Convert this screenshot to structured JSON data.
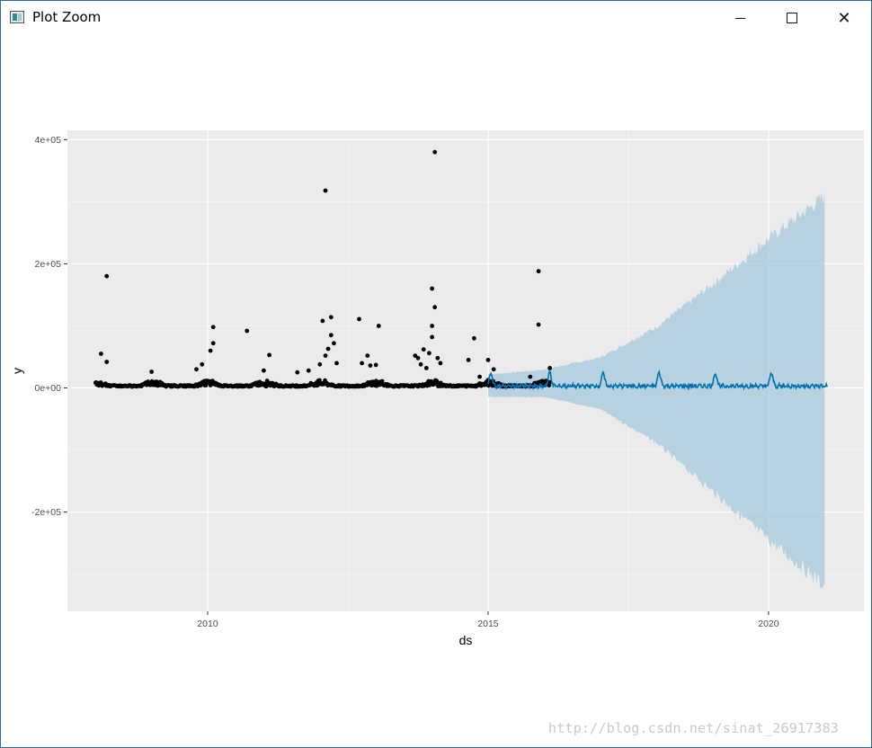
{
  "window": {
    "title": "Plot Zoom",
    "controls": {
      "minimize": "minimize-icon",
      "maximize": "maximize-icon",
      "close": "close-icon"
    }
  },
  "watermark": "http://blog.csdn.net/sinat_26917383",
  "chart_data": {
    "type": "line",
    "xlabel": "ds",
    "ylabel": "y",
    "x_ticks": [
      {
        "value": 2010,
        "label": "2010"
      },
      {
        "value": 2015,
        "label": "2015"
      },
      {
        "value": 2020,
        "label": "2020"
      }
    ],
    "y_ticks": [
      {
        "value": 400000,
        "label": "4e+05"
      },
      {
        "value": 200000,
        "label": "2e+05"
      },
      {
        "value": 0,
        "label": "0e+00"
      },
      {
        "value": -200000,
        "label": "-2e+05"
      }
    ],
    "xlim": [
      2007.5,
      2021.7
    ],
    "ylim": [
      -360000,
      415000
    ],
    "grid": true,
    "colors": {
      "panel": "#ebebeb",
      "grid": "#ffffff",
      "points": "#000000",
      "forecast": "#0072b2",
      "interval": "#a6c8dd"
    },
    "observed_outliers": [
      {
        "x": 2008.2,
        "y": 180000
      },
      {
        "x": 2008.1,
        "y": 55000
      },
      {
        "x": 2008.2,
        "y": 42000
      },
      {
        "x": 2009.0,
        "y": 26000
      },
      {
        "x": 2009.8,
        "y": 30000
      },
      {
        "x": 2009.9,
        "y": 38000
      },
      {
        "x": 2010.1,
        "y": 98000
      },
      {
        "x": 2010.1,
        "y": 72000
      },
      {
        "x": 2010.05,
        "y": 60000
      },
      {
        "x": 2010.7,
        "y": 92000
      },
      {
        "x": 2011.0,
        "y": 28000
      },
      {
        "x": 2011.1,
        "y": 53000
      },
      {
        "x": 2011.6,
        "y": 25000
      },
      {
        "x": 2011.8,
        "y": 28000
      },
      {
        "x": 2012.1,
        "y": 318000
      },
      {
        "x": 2012.05,
        "y": 108000
      },
      {
        "x": 2012.2,
        "y": 114000
      },
      {
        "x": 2012.2,
        "y": 85000
      },
      {
        "x": 2012.25,
        "y": 72000
      },
      {
        "x": 2012.15,
        "y": 63000
      },
      {
        "x": 2012.1,
        "y": 52000
      },
      {
        "x": 2012.0,
        "y": 38000
      },
      {
        "x": 2012.3,
        "y": 40000
      },
      {
        "x": 2012.7,
        "y": 111000
      },
      {
        "x": 2012.85,
        "y": 52000
      },
      {
        "x": 2012.75,
        "y": 40000
      },
      {
        "x": 2012.9,
        "y": 36000
      },
      {
        "x": 2013.05,
        "y": 100000
      },
      {
        "x": 2013.0,
        "y": 37000
      },
      {
        "x": 2013.7,
        "y": 52000
      },
      {
        "x": 2013.75,
        "y": 48000
      },
      {
        "x": 2013.85,
        "y": 62000
      },
      {
        "x": 2013.95,
        "y": 56000
      },
      {
        "x": 2013.8,
        "y": 38000
      },
      {
        "x": 2013.9,
        "y": 32000
      },
      {
        "x": 2014.05,
        "y": 380000
      },
      {
        "x": 2014.0,
        "y": 160000
      },
      {
        "x": 2014.05,
        "y": 130000
      },
      {
        "x": 2014.0,
        "y": 100000
      },
      {
        "x": 2014.0,
        "y": 82000
      },
      {
        "x": 2014.1,
        "y": 48000
      },
      {
        "x": 2014.15,
        "y": 40000
      },
      {
        "x": 2014.65,
        "y": 45000
      },
      {
        "x": 2014.75,
        "y": 80000
      },
      {
        "x": 2014.85,
        "y": 18000
      },
      {
        "x": 2015.0,
        "y": 45000
      },
      {
        "x": 2015.1,
        "y": 30000
      },
      {
        "x": 2015.9,
        "y": 188000
      },
      {
        "x": 2015.9,
        "y": 102000
      },
      {
        "x": 2016.1,
        "y": 32000
      },
      {
        "x": 2015.75,
        "y": 18000
      }
    ],
    "forecast_peaks": [
      {
        "x": 2015.05,
        "y": 20000
      },
      {
        "x": 2016.1,
        "y": 22000
      },
      {
        "x": 2017.05,
        "y": 21000
      },
      {
        "x": 2018.05,
        "y": 22000
      },
      {
        "x": 2019.05,
        "y": 21000
      },
      {
        "x": 2020.05,
        "y": 21000
      }
    ],
    "interval_envelope": [
      {
        "x": 2015.0,
        "upper": 22000,
        "lower": -15000
      },
      {
        "x": 2016.0,
        "upper": 30000,
        "lower": -15000
      },
      {
        "x": 2017.0,
        "upper": 50000,
        "lower": -35000
      },
      {
        "x": 2018.0,
        "upper": 100000,
        "lower": -90000
      },
      {
        "x": 2019.0,
        "upper": 170000,
        "lower": -170000
      },
      {
        "x": 2020.0,
        "upper": 245000,
        "lower": -250000
      },
      {
        "x": 2021.0,
        "upper": 315000,
        "lower": -325000
      }
    ]
  }
}
